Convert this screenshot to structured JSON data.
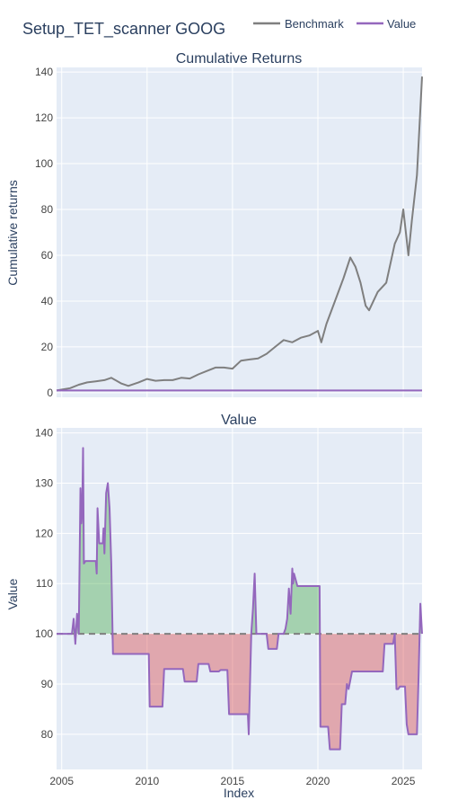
{
  "title": "Setup_TET_scanner GOOG",
  "legend": [
    {
      "label": "Benchmark",
      "color": "#7f7f7f"
    },
    {
      "label": "Value",
      "color": "#9467bd"
    }
  ],
  "chart_data": [
    {
      "type": "line",
      "subtitle": "Cumulative Returns",
      "xlabel": "",
      "ylabel": "Cumulative returns",
      "xlim": [
        2004.7,
        2026.1
      ],
      "ylim": [
        -2,
        142
      ],
      "yticks": [
        0,
        20,
        40,
        60,
        80,
        100,
        120,
        140
      ],
      "grid": true,
      "series": [
        {
          "name": "Benchmark",
          "color": "#7f7f7f",
          "x": [
            2004.7,
            2005.5,
            2006.0,
            2006.5,
            2007.0,
            2007.5,
            2007.9,
            2008.5,
            2008.9,
            2009.5,
            2010.0,
            2010.5,
            2011.0,
            2011.5,
            2012.0,
            2012.5,
            2013.0,
            2013.5,
            2014.0,
            2014.5,
            2015.0,
            2015.5,
            2016.0,
            2016.5,
            2017.0,
            2017.5,
            2018.0,
            2018.5,
            2019.0,
            2019.5,
            2020.0,
            2020.2,
            2020.5,
            2021.0,
            2021.5,
            2021.9,
            2022.2,
            2022.5,
            2022.8,
            2023.0,
            2023.5,
            2024.0,
            2024.5,
            2024.8,
            2025.0,
            2025.3,
            2025.5,
            2025.8,
            2026.1
          ],
          "y": [
            1,
            2,
            3.5,
            4.5,
            5,
            5.5,
            6.5,
            4,
            3,
            4.5,
            6,
            5.2,
            5.5,
            5.5,
            6.5,
            6.2,
            8,
            9.5,
            11,
            11,
            10.5,
            14,
            14.5,
            15,
            17,
            20,
            23,
            22,
            24,
            25,
            27,
            22,
            30,
            40,
            50,
            59,
            55,
            48,
            38,
            36,
            44,
            48,
            65,
            70,
            80,
            60,
            75,
            95,
            138
          ]
        },
        {
          "name": "Value",
          "color": "#9467bd",
          "x": [
            2004.7,
            2026.1
          ],
          "y": [
            1,
            1
          ]
        }
      ]
    },
    {
      "type": "area",
      "subtitle": "Value",
      "xlabel": "Index",
      "ylabel": "Value",
      "xlim": [
        2004.7,
        2026.1
      ],
      "ylim": [
        73,
        141
      ],
      "yticks": [
        80,
        90,
        100,
        110,
        120,
        130,
        140
      ],
      "xticks": [
        2005,
        2010,
        2015,
        2020,
        2025
      ],
      "baseline": 100,
      "grid": true,
      "above_color": "#2ca02c",
      "below_color": "#d62728",
      "series": [
        {
          "name": "Value",
          "color": "#9467bd",
          "x": [
            2004.7,
            2005.6,
            2005.7,
            2005.8,
            2005.9,
            2006.0,
            2006.1,
            2006.15,
            2006.2,
            2006.25,
            2006.3,
            2006.4,
            2007.0,
            2007.05,
            2007.1,
            2007.2,
            2007.4,
            2007.45,
            2007.5,
            2007.6,
            2007.7,
            2007.8,
            2007.9,
            2008.0,
            2008.05,
            2008.1,
            2008.2,
            2010.1,
            2010.15,
            2010.9,
            2011.0,
            2012.1,
            2012.2,
            2012.9,
            2013.0,
            2013.6,
            2013.7,
            2014.2,
            2014.3,
            2014.7,
            2014.8,
            2015.9,
            2015.95,
            2016.1,
            2016.2,
            2016.3,
            2016.4,
            2016.45,
            2016.5,
            2017.0,
            2017.1,
            2017.6,
            2017.7,
            2018.0,
            2018.1,
            2018.2,
            2018.3,
            2018.4,
            2018.5,
            2018.55,
            2018.6,
            2018.8,
            2020.1,
            2020.15,
            2020.6,
            2020.7,
            2021.3,
            2021.4,
            2021.6,
            2021.7,
            2021.8,
            2022.0,
            2022.1,
            2023.8,
            2023.9,
            2024.4,
            2024.5,
            2024.6,
            2024.7,
            2024.8,
            2025.1,
            2025.2,
            2025.3,
            2025.4,
            2025.8,
            2025.9,
            2026.0,
            2026.1
          ],
          "y": [
            100,
            100,
            103,
            98,
            104,
            100,
            129,
            122,
            124,
            137,
            114,
            114.5,
            114.5,
            112,
            125,
            118,
            118,
            121,
            116,
            128,
            130,
            125,
            114,
            96,
            96,
            96,
            96,
            96,
            85.5,
            85.5,
            93,
            93,
            90.5,
            90.5,
            94,
            94,
            92.5,
            92.5,
            92.8,
            92.8,
            84,
            84,
            80,
            100,
            105,
            112,
            100,
            100,
            100,
            100,
            97,
            97,
            100,
            100,
            101,
            103,
            109,
            104,
            113,
            110,
            112,
            109.5,
            109.5,
            81.5,
            81.5,
            77,
            77,
            86,
            86,
            90,
            89,
            92.5,
            92.5,
            92.5,
            98,
            98,
            100,
            89,
            89,
            89.5,
            89.5,
            82,
            80,
            80,
            80,
            92,
            106,
            100
          ]
        }
      ]
    }
  ]
}
